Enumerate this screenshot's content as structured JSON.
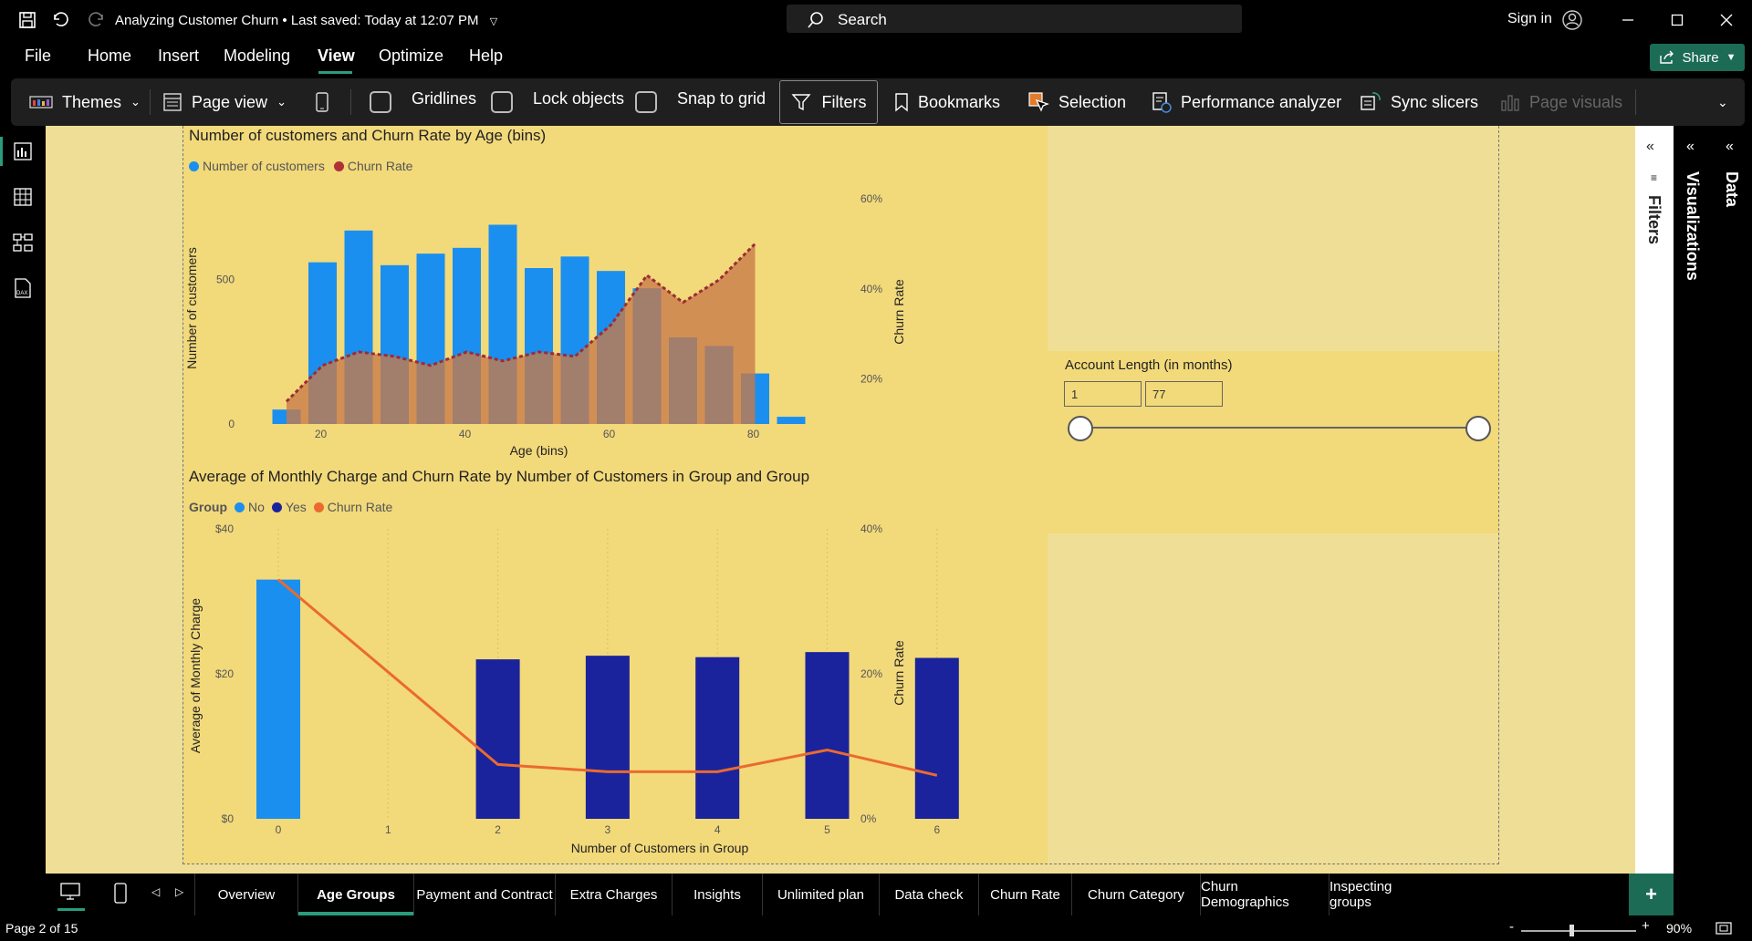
{
  "titlebar": {
    "doc_title": "Analyzing Customer Churn",
    "save_status": "Last saved: Today at 12:07 PM",
    "search_placeholder": "Search",
    "sign_in": "Sign in"
  },
  "menu": {
    "items": [
      "File",
      "Home",
      "Insert",
      "Modeling",
      "View",
      "Optimize",
      "Help"
    ],
    "active": "View",
    "share_label": "Share"
  },
  "ribbon": {
    "themes": "Themes",
    "page_view": "Page view",
    "gridlines": "Gridlines",
    "lock_objects": "Lock objects",
    "snap_to_grid": "Snap to grid",
    "filters": "Filters",
    "bookmarks": "Bookmarks",
    "selection": "Selection",
    "performance_analyzer": "Performance analyzer",
    "sync_slicers": "Sync slicers",
    "page_visuals": "Page visuals"
  },
  "panes": {
    "filters": "Filters",
    "visualizations": "Visualizations",
    "data": "Data"
  },
  "chart_data": [
    {
      "type": "bar",
      "title": "Number of customers and Churn Rate by Age (bins)",
      "xlabel": "Age (bins)",
      "ylabel": "Number of customers",
      "y2label": "Churn Rate",
      "legend": [
        {
          "name": "Number of customers",
          "color": "#1a8fef"
        },
        {
          "name": "Churn Rate",
          "color": "#b0303a"
        }
      ],
      "x": [
        15,
        20,
        25,
        30,
        35,
        40,
        45,
        50,
        55,
        60,
        65,
        70,
        75,
        80,
        85
      ],
      "series": [
        {
          "name": "Number of customers",
          "values": [
            50,
            560,
            670,
            550,
            590,
            610,
            690,
            540,
            580,
            530,
            470,
            300,
            270,
            175,
            25
          ]
        },
        {
          "name": "Churn Rate",
          "values": [
            15,
            23,
            26,
            25,
            23,
            26,
            24,
            26,
            25,
            32,
            43,
            37,
            42,
            50,
            1
          ]
        }
      ],
      "xticks": [
        "20",
        "40",
        "60",
        "80"
      ],
      "yticks": [
        "0",
        "500"
      ],
      "y2ticks": [
        "20%",
        "40%",
        "60%"
      ],
      "ylim": [
        0,
        780
      ],
      "y2lim": [
        10,
        60
      ]
    },
    {
      "type": "bar",
      "title": "Average of Monthly Charge and Churn Rate by Number of Customers in Group and Group",
      "xlabel": "Number of Customers in Group",
      "ylabel": "Average of Monthly Charge",
      "y2label": "Churn Rate",
      "legend_title": "Group",
      "legend": [
        {
          "name": "No",
          "color": "#1a8fef"
        },
        {
          "name": "Yes",
          "color": "#1a239c"
        },
        {
          "name": "Churn Rate",
          "color": "#ea6a2f"
        }
      ],
      "categories": [
        "0",
        "1",
        "2",
        "3",
        "4",
        "5",
        "6"
      ],
      "series": [
        {
          "name": "No",
          "values": [
            33,
            null,
            null,
            null,
            null,
            null,
            null
          ]
        },
        {
          "name": "Yes",
          "values": [
            null,
            null,
            22,
            22.5,
            22.3,
            23,
            22.2
          ]
        },
        {
          "name": "Churn Rate",
          "values": [
            33,
            null,
            7.5,
            6.5,
            6.5,
            9.5,
            6.0
          ]
        }
      ],
      "yticks": [
        "$0",
        "$20",
        "$40"
      ],
      "y2ticks": [
        "0%",
        "20%",
        "40%"
      ],
      "ylim": [
        0,
        40
      ],
      "y2lim": [
        0,
        40
      ]
    }
  ],
  "slicer": {
    "title": "Account Length (in months)",
    "min_value": "1",
    "max_value": "77",
    "range_min": 1,
    "range_max": 77
  },
  "tabs": [
    "Overview",
    "Age Groups",
    "Payment and Contract",
    "Extra Charges",
    "Insights",
    "Unlimited plan",
    "Data check",
    "Churn Rate",
    "Churn Category",
    "Churn Demographics",
    "Inspecting groups"
  ],
  "active_tab": "Age Groups",
  "status": {
    "page": "Page 2 of 15",
    "zoom": "90%",
    "zoom_minus": "-",
    "zoom_plus": "+"
  }
}
